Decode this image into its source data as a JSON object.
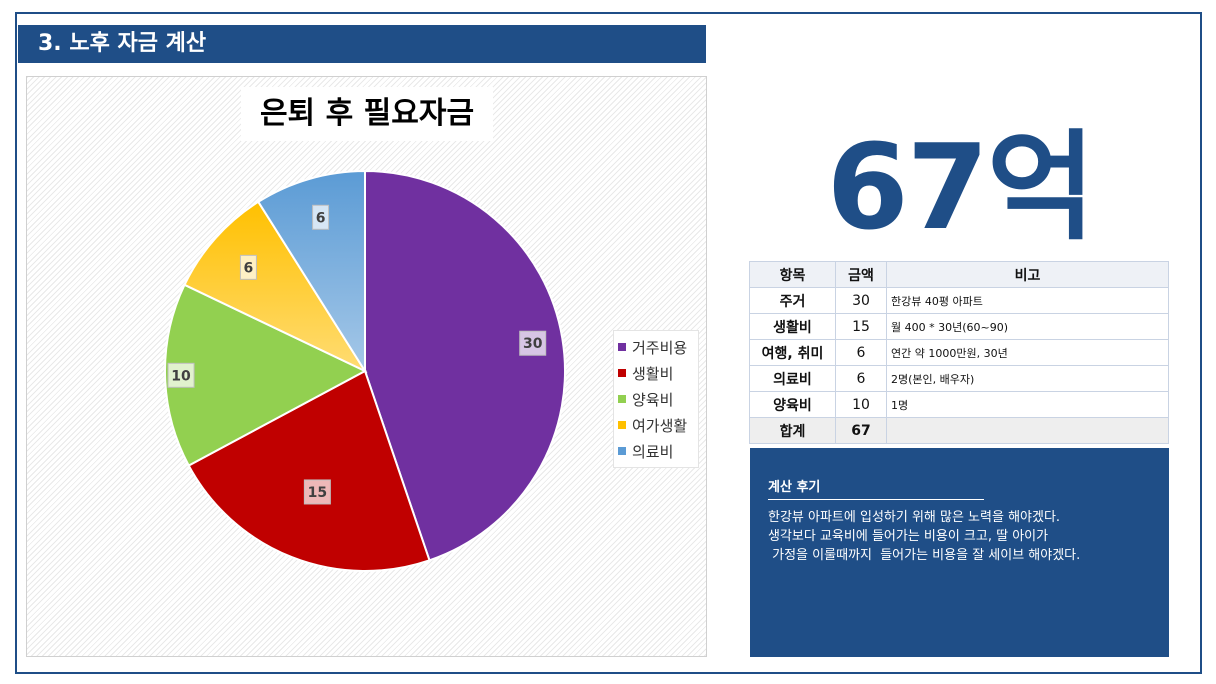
{
  "header": {
    "title": "3. 노후 자금 계산"
  },
  "chart_data": {
    "type": "pie",
    "title": "은퇴 후 필요자금",
    "categories": [
      "거주비용",
      "생활비",
      "양육비",
      "여가생활",
      "의료비"
    ],
    "values": [
      30,
      15,
      10,
      6,
      6
    ],
    "colors": [
      "#7030a0",
      "#c00000",
      "#92d050",
      "#ffc000",
      "#5b9bd5"
    ],
    "data_labels": [
      "30",
      "15",
      "10",
      "6",
      "6"
    ],
    "legend_position": "right"
  },
  "summary": {
    "total_display": "67억"
  },
  "table": {
    "headers": [
      "항목",
      "금액",
      "비고"
    ],
    "rows": [
      {
        "item": "주거",
        "amount": "30",
        "note": "한강뷰 40평 아파트"
      },
      {
        "item": "생활비",
        "amount": "15",
        "note": "월 400 * 30년(60~90)"
      },
      {
        "item": "여행, 취미",
        "amount": "6",
        "note": "연간 약 1000만원, 30년"
      },
      {
        "item": "의료비",
        "amount": "6",
        "note": "2명(본인, 배우자)"
      },
      {
        "item": "양육비",
        "amount": "10",
        "note": "1명"
      }
    ],
    "total": {
      "item": "합계",
      "amount": "67",
      "note": ""
    }
  },
  "review": {
    "title": "계산 후기",
    "lines": [
      "한강뷰 아파트에 입성하기 위해 많은 노력을 해야겠다.",
      "생각보다 교육비에 들어가는 비용이 크고, 딸 아이가",
      " 가정을 이룰때까지  들어가는 비용을 잘 세이브 해야겠다."
    ]
  }
}
